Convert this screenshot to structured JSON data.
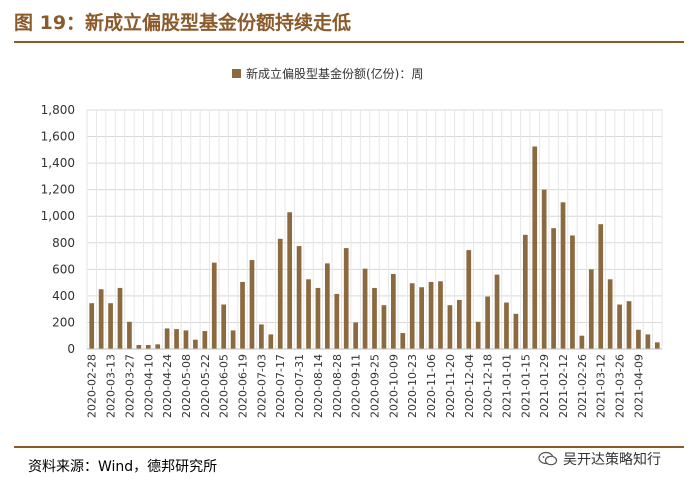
{
  "figure": {
    "title": "图 19：新成立偏股型基金份额持续走低",
    "source": "资料来源：Wind，德邦研究所",
    "watermark": "吴开达策略知行"
  },
  "chart_data": {
    "type": "bar",
    "title": "",
    "xlabel": "",
    "ylabel": "",
    "ylim": [
      0,
      1800
    ],
    "yticks": [
      "0",
      "200",
      "400",
      "600",
      "800",
      "1,000",
      "1,200",
      "1,400",
      "1,600",
      "1,800"
    ],
    "grid": true,
    "legend_position": "top-center",
    "bar_color": "#8C6A3F",
    "series": [
      {
        "name": "新成立偏股型基金份额(亿份)：周",
        "values": [
          345,
          450,
          345,
          460,
          205,
          30,
          30,
          35,
          155,
          150,
          140,
          70,
          135,
          650,
          335,
          140,
          505,
          670,
          185,
          110,
          830,
          1030,
          775,
          525,
          460,
          645,
          415,
          760,
          200,
          605,
          460,
          330,
          565,
          120,
          495,
          465,
          505,
          510,
          330,
          370,
          745,
          205,
          395,
          560,
          350,
          265,
          860,
          1525,
          1200,
          910,
          1105,
          855,
          100,
          600,
          940,
          525,
          335,
          360,
          145,
          110,
          50
        ]
      }
    ],
    "x_tick_labels": [
      "2020-02-28",
      "2020-03-13",
      "2020-03-27",
      "2020-04-10",
      "2020-04-24",
      "2020-05-08",
      "2020-05-22",
      "2020-06-05",
      "2020-06-19",
      "2020-07-03",
      "2020-07-17",
      "2020-07-31",
      "2020-08-14",
      "2020-08-28",
      "2020-09-11",
      "2020-09-25",
      "2020-10-09",
      "2020-10-23",
      "2020-11-06",
      "2020-11-20",
      "2020-12-04",
      "2020-12-18",
      "2021-01-01",
      "2021-01-15",
      "2021-01-29",
      "2021-02-12",
      "2021-02-26",
      "2021-03-12",
      "2021-03-26",
      "2021-04-09"
    ]
  }
}
